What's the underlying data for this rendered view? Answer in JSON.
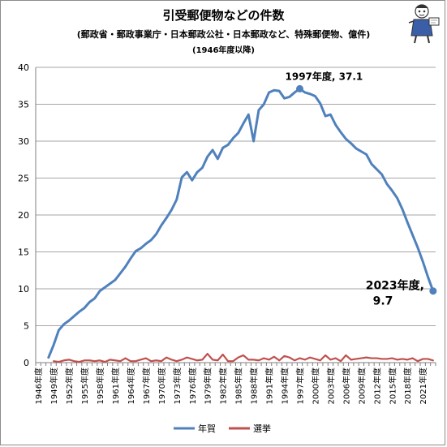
{
  "header": {
    "title": "引受郵便物などの件数",
    "subtitle": "(郵政省・郵政事業庁・日本郵政公社・日本郵政など、特殊郵便物、億件)",
    "note": "(1946年度以降)"
  },
  "chart_data": {
    "type": "line",
    "ylim": [
      0,
      40
    ],
    "yticks": [
      0,
      5,
      10,
      15,
      20,
      25,
      30,
      35,
      40
    ],
    "x_start_year": 1946,
    "x_end_year": 2023,
    "xtick_labels": [
      "1946年度",
      "1949年度",
      "1952年度",
      "1955年度",
      "1958年度",
      "1961年度",
      "1964年度",
      "1967年度",
      "1970年度",
      "1973年度",
      "1976年度",
      "1979年度",
      "1982年度",
      "1985年度",
      "1988年度",
      "1991年度",
      "1994年度",
      "1997年度",
      "2000年度",
      "2003年度",
      "2006年度",
      "2009年度",
      "2012年度",
      "2015年度",
      "2018年度",
      "2021年度"
    ],
    "series": [
      {
        "name": "年賀",
        "color": "#4f81bd",
        "start_year": 1948,
        "values": [
          0.7,
          2.4,
          4.4,
          5.2,
          5.7,
          6.3,
          6.9,
          7.4,
          8.2,
          8.7,
          9.7,
          10.2,
          10.7,
          11.2,
          12.1,
          13.0,
          14.1,
          15.1,
          15.5,
          16.1,
          16.6,
          17.4,
          18.6,
          19.6,
          20.7,
          22.1,
          25.1,
          25.8,
          24.7,
          25.8,
          26.4,
          27.9,
          28.8,
          27.6,
          29.1,
          29.5,
          30.4,
          31.1,
          32.4,
          33.6,
          30.0,
          34.2,
          35.0,
          36.6,
          36.9,
          36.8,
          35.8,
          36.0,
          36.6,
          37.1,
          36.6,
          36.4,
          36.1,
          35.1,
          33.4,
          33.6,
          32.2,
          31.2,
          30.3,
          29.7,
          29.0,
          28.6,
          28.2,
          26.9,
          26.2,
          25.5,
          24.2,
          23.3,
          22.3,
          20.8,
          19.0,
          17.3,
          15.6,
          13.7,
          11.6,
          9.7
        ]
      },
      {
        "name": "選挙",
        "color": "#c0504d",
        "start_year": 1949,
        "values": [
          0.2,
          0.1,
          0.3,
          0.4,
          0.2,
          0.1,
          0.3,
          0.3,
          0.2,
          0.3,
          0.1,
          0.4,
          0.3,
          0.2,
          0.6,
          0.2,
          0.2,
          0.4,
          0.6,
          0.2,
          0.3,
          0.2,
          0.7,
          0.4,
          0.2,
          0.4,
          0.7,
          0.5,
          0.3,
          0.4,
          1.2,
          0.4,
          0.3,
          1.1,
          0.2,
          0.2,
          0.7,
          1.0,
          0.4,
          0.4,
          0.3,
          0.6,
          0.4,
          0.8,
          0.3,
          0.9,
          0.7,
          0.3,
          0.6,
          0.4,
          0.7,
          0.5,
          0.3,
          1.0,
          0.4,
          0.6,
          0.2,
          1.0,
          0.4,
          0.5,
          0.6,
          0.7,
          0.6,
          0.6,
          0.5,
          0.5,
          0.6,
          0.4,
          0.5,
          0.4,
          0.6,
          0.2,
          0.5,
          0.5,
          0.3
        ]
      }
    ],
    "annotations": [
      {
        "label": "1997年度, 37.1",
        "year": 1997,
        "value": 37.1
      },
      {
        "label_line1": "2023年度,",
        "label_line2": "9.7",
        "year": 2023,
        "value": 9.7
      }
    ],
    "legend": {
      "placement": "bottom",
      "items": [
        "年賀",
        "選挙"
      ]
    }
  }
}
